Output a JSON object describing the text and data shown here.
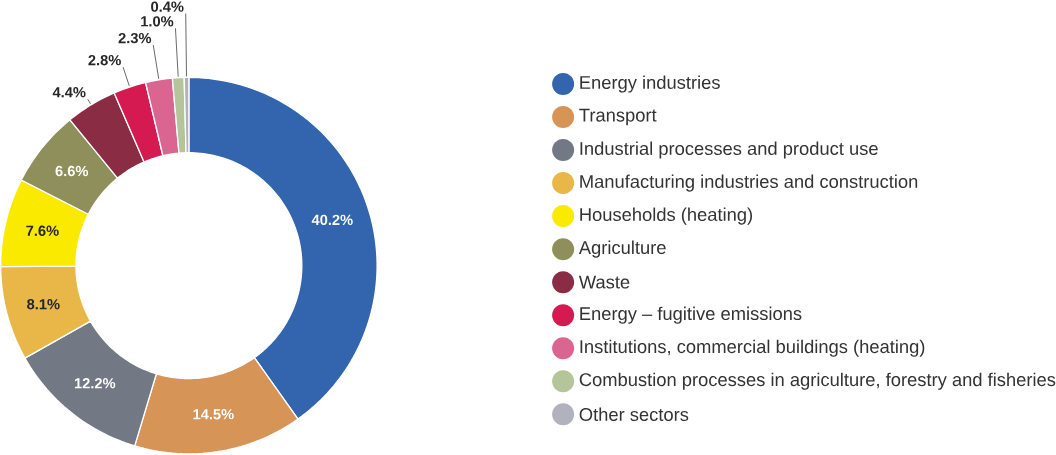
{
  "chart_data": {
    "type": "donut",
    "categories": [
      "Energy industries",
      "Transport",
      "Industrial processes and product use",
      "Manufacturing industries and construction",
      "Households (heating)",
      "Agriculture",
      "Waste",
      "Energy – fugitive emissions",
      "Institutions, commercial buildings (heating)",
      "Combustion processes in agriculture, forestry and fisheries",
      "Other sectors"
    ],
    "values": [
      40.2,
      14.5,
      12.2,
      8.1,
      7.6,
      6.6,
      4.4,
      2.8,
      2.3,
      1.0,
      0.4
    ],
    "value_labels": [
      "40.2%",
      "14.5%",
      "12.2%",
      "8.1%",
      "7.6%",
      "6.6%",
      "4.4%",
      "2.8%",
      "2.3%",
      "1.0%",
      "0.4%"
    ],
    "colors": [
      "#3265ae",
      "#d69457",
      "#737885",
      "#e8b748",
      "#f9ea00",
      "#8f8f5c",
      "#8a2c44",
      "#d41a50",
      "#da6590",
      "#b6c49a",
      "#b2b2bf"
    ],
    "legend": "right"
  }
}
